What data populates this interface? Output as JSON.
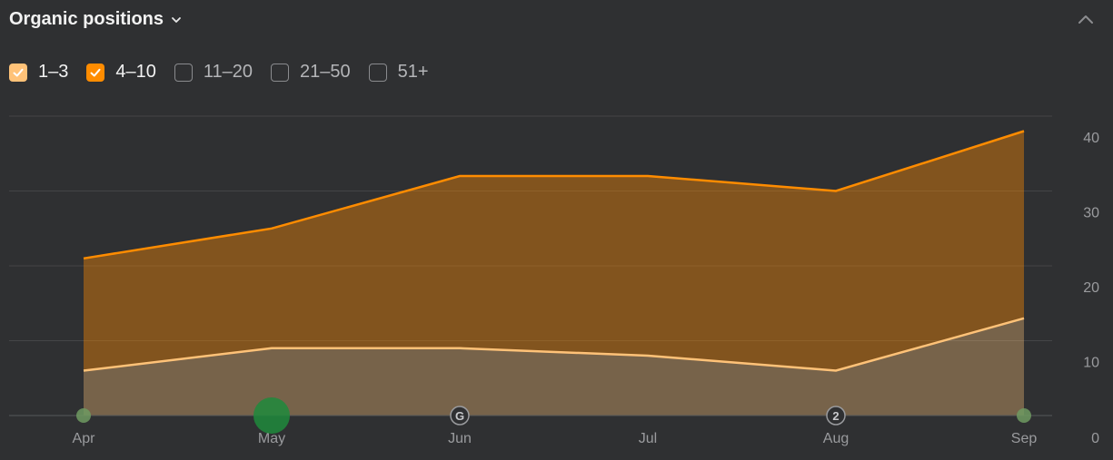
{
  "header": {
    "title": "Organic positions",
    "dropdown_icon": "chevron-down-icon",
    "collapse_icon": "chevron-up-icon"
  },
  "legend": [
    {
      "label": "1–3",
      "checked": true,
      "color": "#ffc278"
    },
    {
      "label": "4–10",
      "checked": true,
      "color": "#ff8c00"
    },
    {
      "label": "11–20",
      "checked": false
    },
    {
      "label": "21–50",
      "checked": false
    },
    {
      "label": "51+",
      "checked": false
    }
  ],
  "chart_data": {
    "type": "area",
    "categories": [
      "Apr",
      "May",
      "Jun",
      "Jul",
      "Aug",
      "Sep"
    ],
    "series": [
      {
        "name": "1–3",
        "color": "#ffc278",
        "values": [
          6,
          9,
          9,
          8,
          6,
          13
        ]
      },
      {
        "name": "4–10",
        "color": "#ff8c00",
        "values": [
          15,
          16,
          23,
          24,
          24,
          25
        ]
      }
    ],
    "stacked": true,
    "ylim": [
      0,
      40
    ],
    "yticks": [
      0,
      10,
      20,
      30,
      40
    ],
    "grid": true,
    "yaxis_position": "right",
    "markers": [
      {
        "category": "Apr",
        "kind": "dot",
        "color": "#6f9a62"
      },
      {
        "category": "May",
        "kind": "large-dot",
        "color": "#1f8a3c"
      },
      {
        "category": "Jun",
        "kind": "badge",
        "text": "G"
      },
      {
        "category": "Aug",
        "kind": "badge",
        "text": "2"
      },
      {
        "category": "Sep",
        "kind": "dot",
        "color": "#6f9a62"
      }
    ]
  }
}
